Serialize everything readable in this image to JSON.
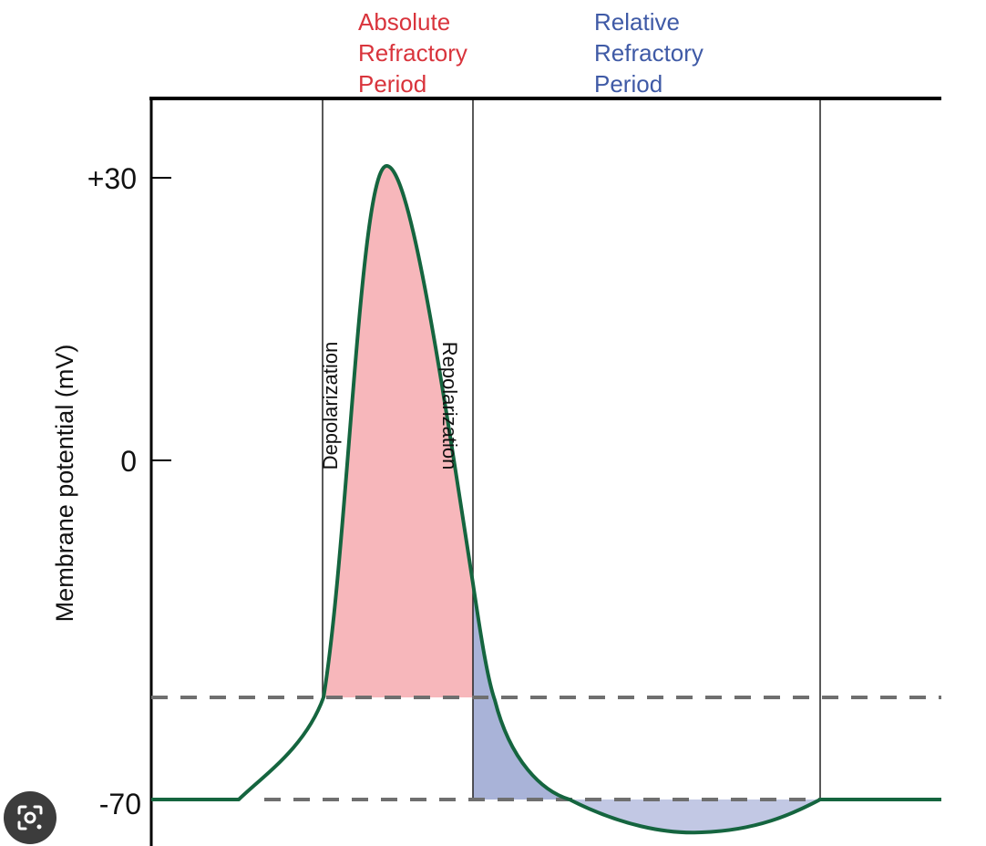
{
  "diagram": {
    "type": "action-potential",
    "title_absolute": [
      "Absolute",
      "Refractory",
      "Period"
    ],
    "title_relative": [
      "Relative",
      "Refractory",
      "Period"
    ],
    "ylabel": "Membrane potential (mV)",
    "tick_labels": [
      "+30",
      "0",
      "-70"
    ],
    "phase_labels": {
      "depolarization": "Depolarization",
      "repolarization": "Repolarization"
    },
    "colors": {
      "trace": "#15653f",
      "absolute_fill": "#f7b7bb",
      "relative_fill": "#a9b3d8",
      "relative_fill_light": "#c2c8e4",
      "dashed": "#6f6f6f",
      "title_red": "#d9343c",
      "title_blue": "#3f5aa6"
    }
  },
  "overlay": {
    "icon": "lens-search-icon"
  }
}
